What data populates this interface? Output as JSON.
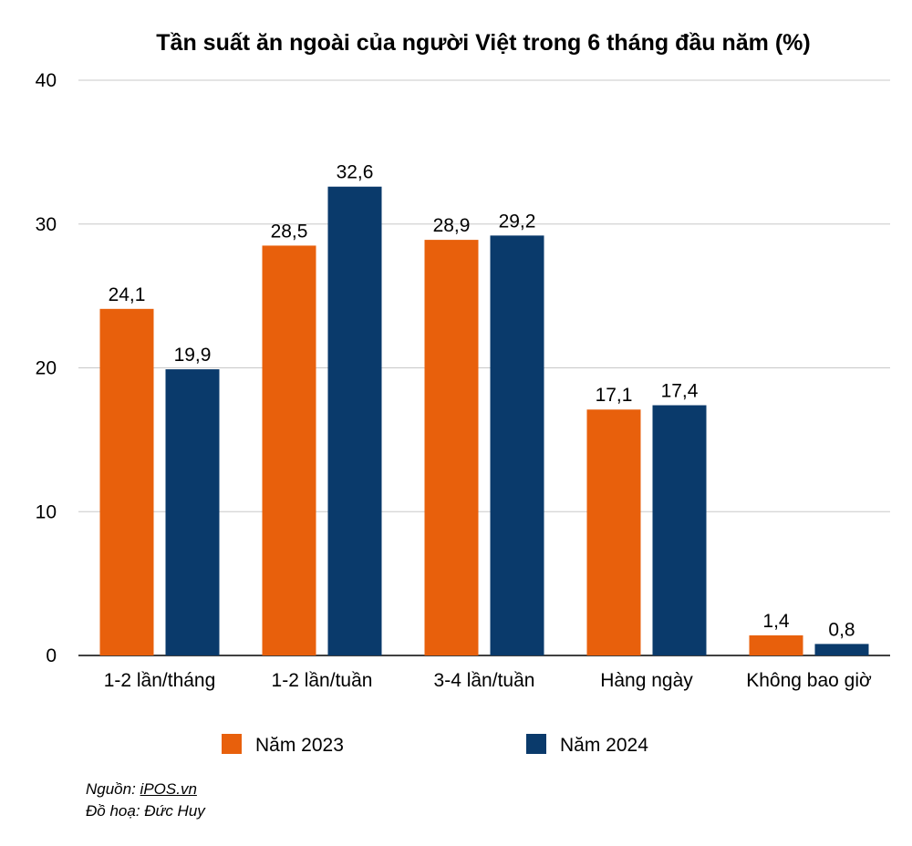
{
  "chart_data": {
    "type": "bar",
    "title": "Tần suất ăn ngoài của người Việt trong 6 tháng đầu năm (%)",
    "categories": [
      "1-2 lần/tháng",
      "1-2 lần/tuần",
      "3-4 lần/tuần",
      "Hàng ngày",
      "Không bao giờ"
    ],
    "series": [
      {
        "name": "Năm 2023",
        "color": "#e8600c",
        "values": [
          24.1,
          28.5,
          28.9,
          17.1,
          1.4
        ],
        "labels": [
          "24,1",
          "28,5",
          "28,9",
          "17,1",
          "1,4"
        ]
      },
      {
        "name": "Năm 2024",
        "color": "#0a3a6b",
        "values": [
          19.9,
          32.6,
          29.2,
          17.4,
          0.8
        ],
        "labels": [
          "19,9",
          "32,6",
          "29,2",
          "17,4",
          "0,8"
        ]
      }
    ],
    "ylim": [
      0,
      40
    ],
    "yticks": [
      0,
      10,
      20,
      30,
      40
    ],
    "grid": true,
    "legend": "bottom"
  },
  "source": {
    "prefix": "Nguồn: ",
    "link": "iPOS.vn",
    "credit": "Đồ hoạ: Đức Huy"
  }
}
